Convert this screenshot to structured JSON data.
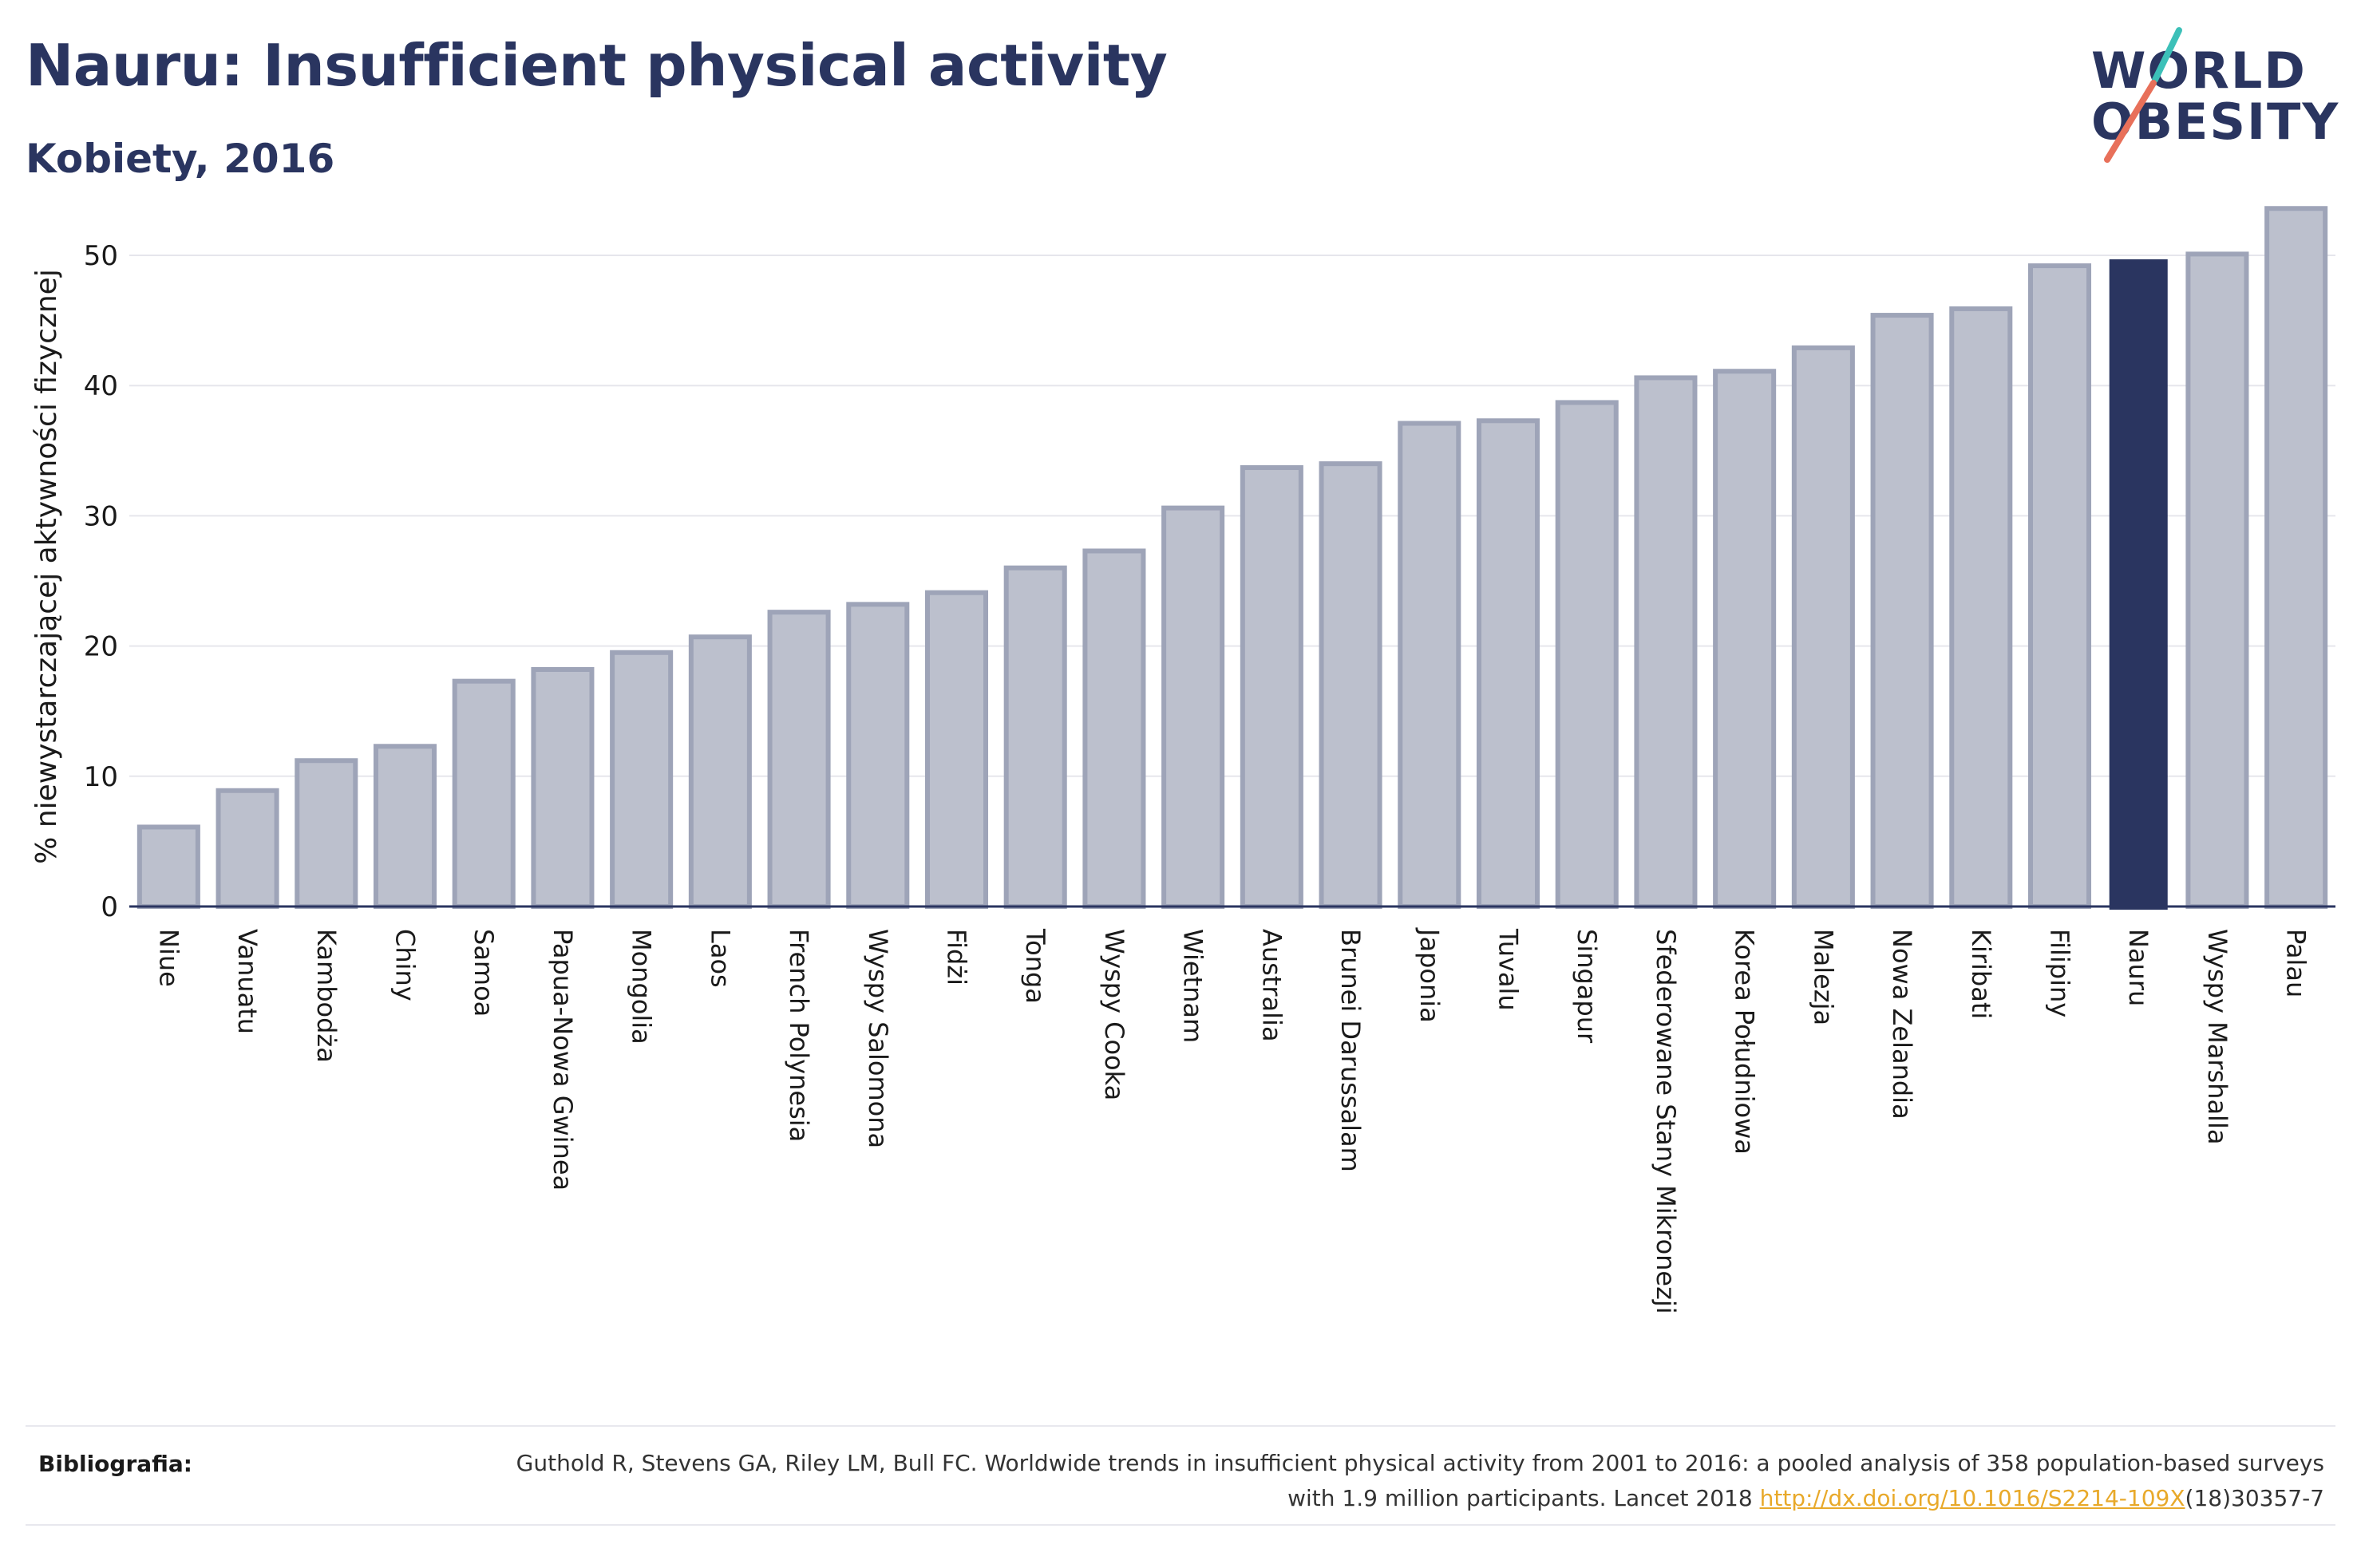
{
  "header": {
    "title": "Nauru: Insufficient physical activity",
    "subtitle": "Kobiety, 2016"
  },
  "logo": {
    "line1": "WORLD",
    "line2": "OBESITY",
    "colors": {
      "text": "#2a3560",
      "slash_top": "#3cc0b8",
      "slash_bottom": "#e8705a"
    }
  },
  "colors": {
    "bar_default": "#bcc0cd",
    "bar_default_stroke": "#9ea4b8",
    "bar_highlight": "#2a3560",
    "grid": "#e6e6ec",
    "axis": "#2a3560"
  },
  "chart_data": {
    "type": "bar",
    "ylabel": "% niewystarczającej aktywności fizycznej",
    "xlabel": "",
    "ylim": [
      0,
      55
    ],
    "yticks": [
      0,
      10,
      20,
      30,
      40,
      50
    ],
    "grid": true,
    "highlight": "Nauru",
    "categories": [
      "Niue",
      "Vanuatu",
      "Kambodża",
      "Chiny",
      "Samoa",
      "Papua-Nowa Gwinea",
      "Mongolia",
      "Laos",
      "French Polynesia",
      "Wyspy Salomona",
      "Fidżi",
      "Tonga",
      "Wyspy Cooka",
      "Wietnam",
      "Australia",
      "Brunei Darussalam",
      "Japonia",
      "Tuvalu",
      "Singapur",
      "Sfederowane Stany Mikronezji",
      "Korea Południowa",
      "Malezja",
      "Nowa Zelandia",
      "Kiribati",
      "Filipiny",
      "Nauru",
      "Wyspy Marshalla",
      "Palau"
    ],
    "values": [
      6.1,
      8.9,
      11.2,
      12.3,
      17.3,
      18.2,
      19.5,
      20.7,
      22.6,
      23.2,
      24.1,
      26.0,
      27.3,
      30.6,
      33.7,
      34.0,
      37.1,
      37.3,
      38.7,
      40.6,
      41.1,
      42.9,
      45.4,
      45.9,
      49.2,
      49.7,
      50.1,
      53.6
    ]
  },
  "footer": {
    "label": "Bibliografia:",
    "citation_part1": "Guthold R, Stevens GA, Riley LM, Bull FC. Worldwide trends in insufficient physical activity from 2001 to 2016: a pooled analysis of 358 population-based surveys with 1.9 million participants. Lancet 2018 ",
    "citation_link": "http://dx.doi.org/10.1016/S2214-109X",
    "citation_part2": "(18)30357-7"
  }
}
